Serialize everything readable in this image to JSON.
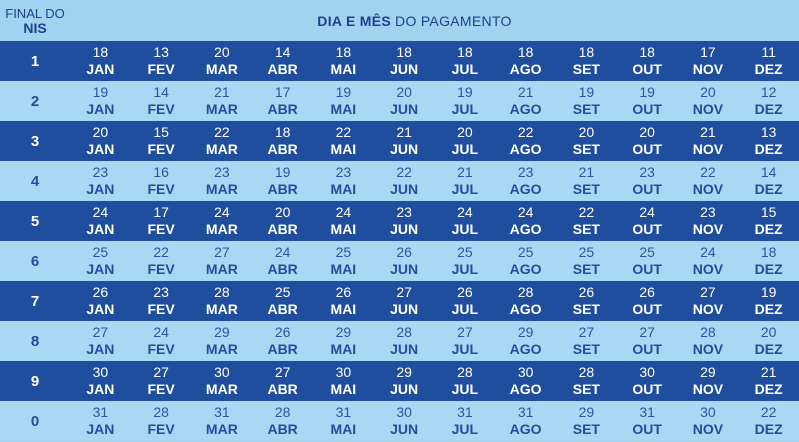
{
  "header": {
    "nis_label_line1": "FINAL DO",
    "nis_label_line2": "NIS",
    "title_bold": "DIA E MÊS",
    "title_rest": "DO PAGAMENTO"
  },
  "colors": {
    "dark_row": "#1f4e9e",
    "light_row": "#a8d8f3",
    "text_dark": "#1f3f8f"
  },
  "rows": [
    {
      "nis": "1",
      "days": [
        "18",
        "13",
        "20",
        "14",
        "18",
        "18",
        "18",
        "18",
        "18",
        "18",
        "17",
        "11"
      ],
      "months": [
        "JAN",
        "FEV",
        "MAR",
        "ABR",
        "MAI",
        "JUN",
        "JUL",
        "AGO",
        "SET",
        "OUT",
        "NOV",
        "DEZ"
      ]
    },
    {
      "nis": "2",
      "days": [
        "19",
        "14",
        "21",
        "17",
        "19",
        "20",
        "19",
        "21",
        "19",
        "19",
        "20",
        "12"
      ],
      "months": [
        "JAN",
        "FEV",
        "MAR",
        "ABR",
        "MAI",
        "JUN",
        "JUL",
        "AGO",
        "SET",
        "OUT",
        "NOV",
        "DEZ"
      ]
    },
    {
      "nis": "3",
      "days": [
        "20",
        "15",
        "22",
        "18",
        "22",
        "21",
        "20",
        "22",
        "20",
        "20",
        "21",
        "13"
      ],
      "months": [
        "JAN",
        "FEV",
        "MAR",
        "ABR",
        "MAI",
        "JUN",
        "JUL",
        "AGO",
        "SET",
        "OUT",
        "NOV",
        "DEZ"
      ]
    },
    {
      "nis": "4",
      "days": [
        "23",
        "16",
        "23",
        "19",
        "23",
        "22",
        "21",
        "23",
        "21",
        "23",
        "22",
        "14"
      ],
      "months": [
        "JAN",
        "FEV",
        "MAR",
        "ABR",
        "MAI",
        "JUN",
        "JUL",
        "AGO",
        "SET",
        "OUT",
        "NOV",
        "DEZ"
      ]
    },
    {
      "nis": "5",
      "days": [
        "24",
        "17",
        "24",
        "20",
        "24",
        "23",
        "24",
        "24",
        "22",
        "24",
        "23",
        "15"
      ],
      "months": [
        "JAN",
        "FEV",
        "MAR",
        "ABR",
        "MAI",
        "JUN",
        "JUL",
        "AGO",
        "SET",
        "OUT",
        "NOV",
        "DEZ"
      ]
    },
    {
      "nis": "6",
      "days": [
        "25",
        "22",
        "27",
        "24",
        "25",
        "26",
        "25",
        "25",
        "25",
        "25",
        "24",
        "18"
      ],
      "months": [
        "JAN",
        "FEV",
        "MAR",
        "ABR",
        "MAI",
        "JUN",
        "JUL",
        "AGO",
        "SET",
        "OUT",
        "NOV",
        "DEZ"
      ]
    },
    {
      "nis": "7",
      "days": [
        "26",
        "23",
        "28",
        "25",
        "26",
        "27",
        "26",
        "28",
        "26",
        "26",
        "27",
        "19"
      ],
      "months": [
        "JAN",
        "FEV",
        "MAR",
        "ABR",
        "MAI",
        "JUN",
        "JUL",
        "AGO",
        "SET",
        "OUT",
        "NOV",
        "DEZ"
      ]
    },
    {
      "nis": "8",
      "days": [
        "27",
        "24",
        "29",
        "26",
        "29",
        "28",
        "27",
        "29",
        "27",
        "27",
        "28",
        "20"
      ],
      "months": [
        "JAN",
        "FEV",
        "MAR",
        "ABR",
        "MAI",
        "JUN",
        "JUL",
        "AGO",
        "SET",
        "OUT",
        "NOV",
        "DEZ"
      ]
    },
    {
      "nis": "9",
      "days": [
        "30",
        "27",
        "30",
        "27",
        "30",
        "29",
        "28",
        "30",
        "28",
        "30",
        "29",
        "21"
      ],
      "months": [
        "JAN",
        "FEV",
        "MAR",
        "ABR",
        "MAI",
        "JUN",
        "JUL",
        "AGO",
        "SET",
        "OUT",
        "NOV",
        "DEZ"
      ]
    },
    {
      "nis": "0",
      "days": [
        "31",
        "28",
        "31",
        "28",
        "31",
        "30",
        "31",
        "31",
        "29",
        "31",
        "30",
        "22"
      ],
      "months": [
        "JAN",
        "FEV",
        "MAR",
        "ABR",
        "MAI",
        "JUN",
        "JUL",
        "AGO",
        "SET",
        "OUT",
        "NOV",
        "DEZ"
      ]
    }
  ]
}
